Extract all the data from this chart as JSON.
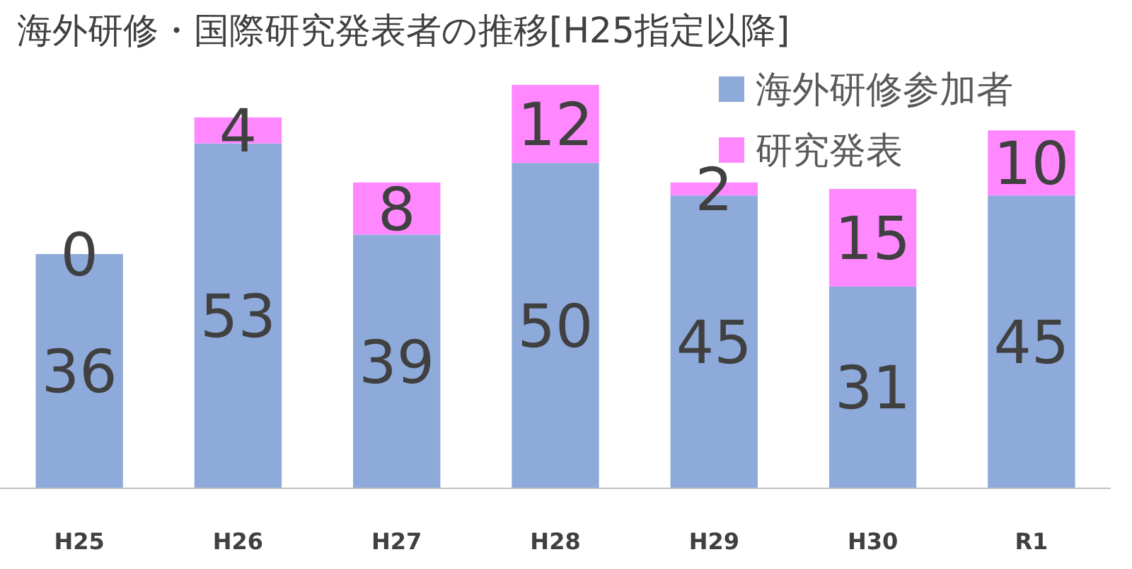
{
  "chart_data": {
    "type": "bar",
    "title": "海外研修・国際研究発表者の推移[H25指定以降]",
    "categories": [
      "H25",
      "H26",
      "H27",
      "H28",
      "H29",
      "H30",
      "R1"
    ],
    "stacked": true,
    "data_labels": true,
    "legend": "top right",
    "grid": false,
    "series": [
      {
        "name": "海外研修参加者",
        "color": "#8eaadb",
        "values": [
          36,
          53,
          39,
          50,
          45,
          31,
          45
        ]
      },
      {
        "name": "研究発表",
        "color": "#ff88ff",
        "values": [
          0,
          4,
          8,
          12,
          2,
          15,
          10
        ]
      }
    ]
  }
}
